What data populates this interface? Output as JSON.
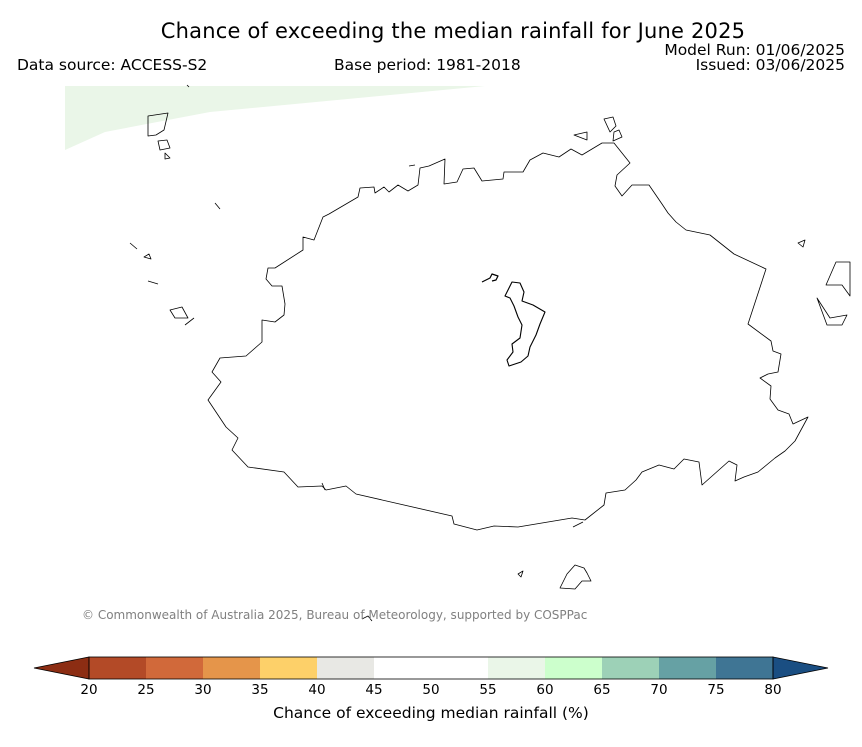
{
  "header": {
    "title": "Chance of exceeding the median rainfall for June 2025",
    "data_source": "Data source: ACCESS-S2",
    "base_period": "Base period: 1981-2018",
    "model_run": "Model Run: 01/06/2025",
    "issued": "Issued: 03/06/2025"
  },
  "map": {
    "copyright": "© Commonwealth of Australia 2025, Bureau of Meteorology, supported by COSPPac",
    "shaded_region_category": "55-60",
    "coastline_color": "#000000"
  },
  "colorbar": {
    "label": "Chance of exceeding median rainfall (%)",
    "ticks": [
      "20",
      "25",
      "30",
      "35",
      "40",
      "45",
      "50",
      "55",
      "60",
      "65",
      "70",
      "75",
      "80"
    ],
    "under_color": "#8c2d13",
    "over_color": "#1a4e82",
    "bins": [
      {
        "range": "20-25",
        "color": "#b34a27"
      },
      {
        "range": "25-30",
        "color": "#d1693a"
      },
      {
        "range": "30-35",
        "color": "#e5954a"
      },
      {
        "range": "35-40",
        "color": "#fdd069"
      },
      {
        "range": "40-45",
        "color": "#e8e8e4"
      },
      {
        "range": "45-50",
        "color": "#ffffff"
      },
      {
        "range": "50-55",
        "color": "#ffffff"
      },
      {
        "range": "55-60",
        "color": "#eaf6e8"
      },
      {
        "range": "60-65",
        "color": "#ccffcc"
      },
      {
        "range": "65-70",
        "color": "#9dd1b7"
      },
      {
        "range": "70-75",
        "color": "#66a1a4"
      },
      {
        "range": "75-80",
        "color": "#3f7594"
      }
    ]
  }
}
